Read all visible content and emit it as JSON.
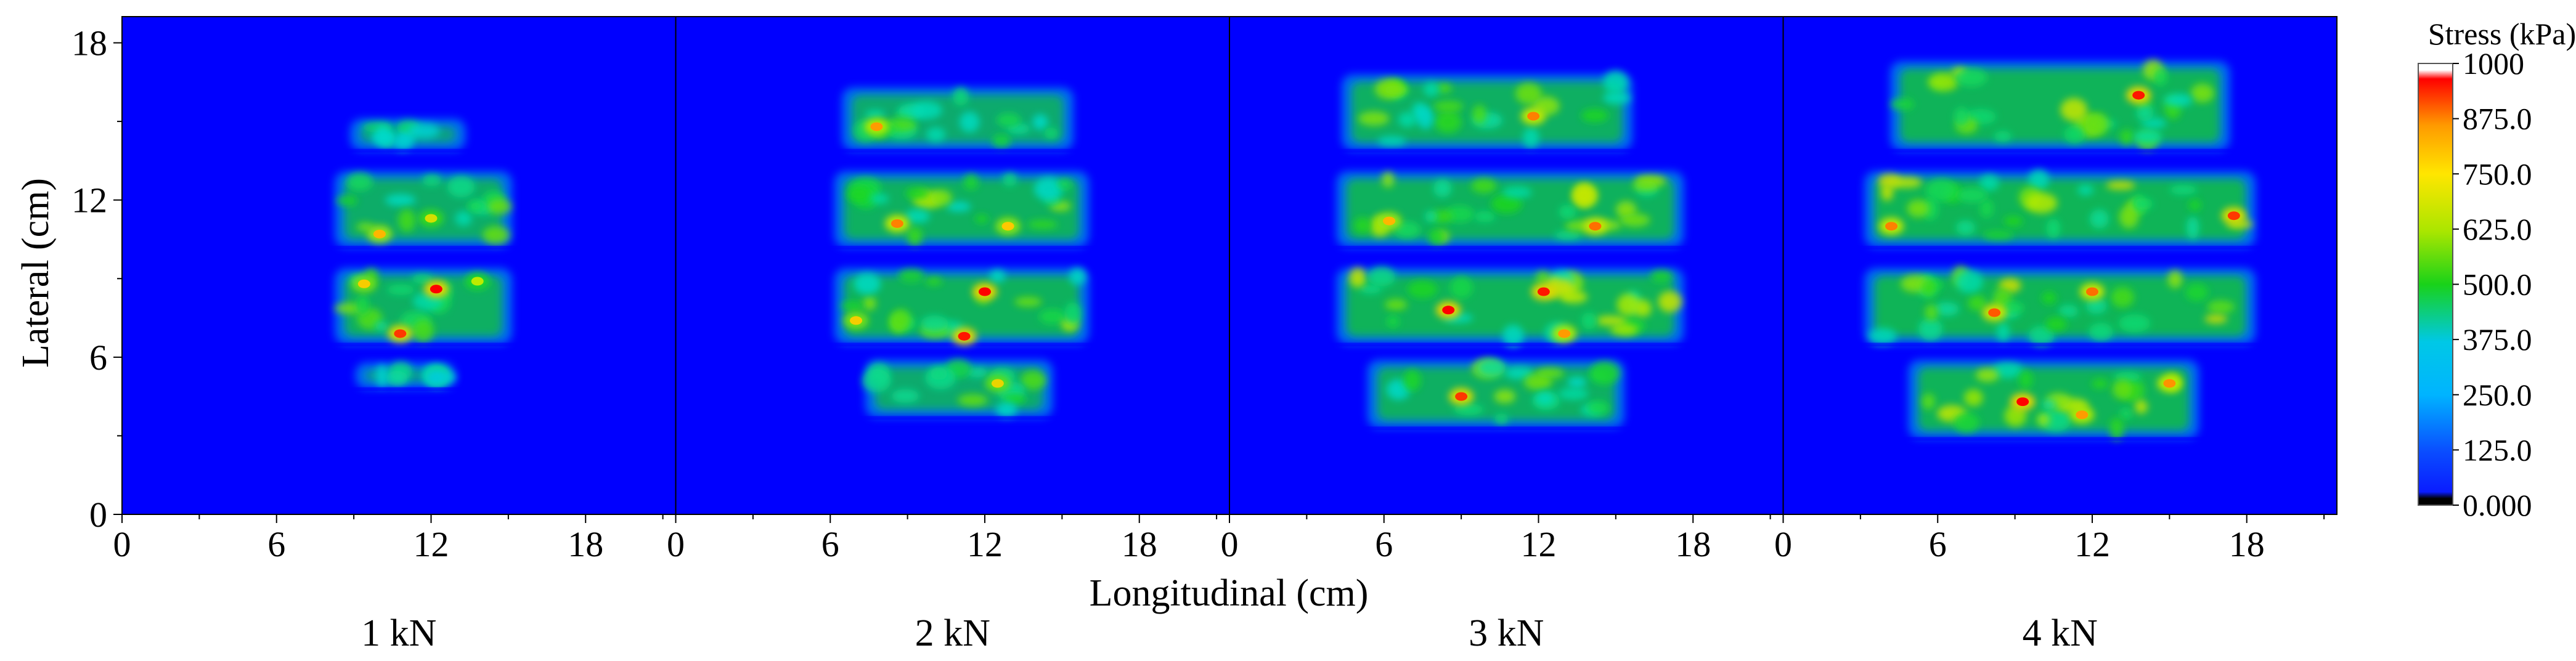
{
  "chart_data": {
    "type": "heatmap",
    "xlabel": "Longitudinal (cm)",
    "ylabel": "Lateral (cm)",
    "xlim": [
      0,
      21.5
    ],
    "ylim": [
      0,
      19
    ],
    "x_ticks": [
      "0",
      "6",
      "12",
      "18"
    ],
    "y_ticks": [
      "0",
      "6",
      "12",
      "18"
    ],
    "x_tick_values": [
      0,
      6,
      12,
      18
    ],
    "y_tick_values": [
      0,
      6,
      12,
      18
    ],
    "colorbar": {
      "title": "Stress (kPa)",
      "min": 0,
      "max": 1000,
      "tick_labels": [
        "1000",
        "875.0",
        "750.0",
        "625.0",
        "500.0",
        "375.0",
        "250.0",
        "125.0",
        "0.000"
      ],
      "tick_values": [
        1000,
        875,
        750,
        625,
        500,
        375,
        250,
        125,
        0
      ]
    },
    "colors": {
      "background": "#0000ff",
      "low": "#0a4cff",
      "mid_low": "#00c8e6",
      "mid": "#19d219",
      "mid_high": "#ffe600",
      "high": "#ff0000",
      "max": "#ffffff",
      "zero": "#000000"
    },
    "panels": [
      {
        "label": "1 kN",
        "bands": [
          {
            "x0": 9.0,
            "x1": 13.2,
            "y0": 14.0,
            "y1": 15.0,
            "intensity": 0.3
          },
          {
            "x0": 8.4,
            "x1": 15.0,
            "y0": 10.3,
            "y1": 13.0,
            "intensity": 0.55
          },
          {
            "x0": 8.4,
            "x1": 15.0,
            "y0": 6.6,
            "y1": 9.3,
            "intensity": 0.6
          },
          {
            "x0": 9.2,
            "x1": 12.8,
            "y0": 4.9,
            "y1": 5.7,
            "intensity": 0.25
          }
        ],
        "hotspots": [
          {
            "x": 12.2,
            "y": 8.6,
            "v": 1000
          },
          {
            "x": 10.8,
            "y": 6.9,
            "v": 950
          },
          {
            "x": 10.0,
            "y": 10.7,
            "v": 820
          },
          {
            "x": 9.4,
            "y": 8.8,
            "v": 780
          },
          {
            "x": 12.0,
            "y": 11.3,
            "v": 700
          },
          {
            "x": 13.8,
            "y": 8.9,
            "v": 650
          }
        ]
      },
      {
        "label": "2 kN",
        "bands": [
          {
            "x0": 6.6,
            "x1": 15.3,
            "y0": 14.0,
            "y1": 16.2,
            "intensity": 0.5
          },
          {
            "x0": 6.3,
            "x1": 15.9,
            "y0": 10.3,
            "y1": 13.0,
            "intensity": 0.62
          },
          {
            "x0": 6.3,
            "x1": 15.9,
            "y0": 6.6,
            "y1": 9.3,
            "intensity": 0.65
          },
          {
            "x0": 7.5,
            "x1": 14.5,
            "y0": 3.8,
            "y1": 5.8,
            "intensity": 0.5
          }
        ],
        "hotspots": [
          {
            "x": 12.0,
            "y": 8.5,
            "v": 1000
          },
          {
            "x": 11.2,
            "y": 6.8,
            "v": 980
          },
          {
            "x": 8.6,
            "y": 11.1,
            "v": 880
          },
          {
            "x": 7.8,
            "y": 14.8,
            "v": 850
          },
          {
            "x": 12.9,
            "y": 11.0,
            "v": 800
          },
          {
            "x": 7.0,
            "y": 7.4,
            "v": 780
          },
          {
            "x": 12.5,
            "y": 5.0,
            "v": 750
          }
        ]
      },
      {
        "label": "3 kN",
        "bands": [
          {
            "x0": 4.5,
            "x1": 15.5,
            "y0": 14.0,
            "y1": 16.7,
            "intensity": 0.6
          },
          {
            "x0": 4.3,
            "x1": 17.5,
            "y0": 10.3,
            "y1": 13.0,
            "intensity": 0.65
          },
          {
            "x0": 4.3,
            "x1": 17.5,
            "y0": 6.6,
            "y1": 9.3,
            "intensity": 0.68
          },
          {
            "x0": 5.5,
            "x1": 15.2,
            "y0": 3.4,
            "y1": 5.8,
            "intensity": 0.6
          }
        ],
        "hotspots": [
          {
            "x": 8.5,
            "y": 7.8,
            "v": 1000
          },
          {
            "x": 12.2,
            "y": 8.5,
            "v": 980
          },
          {
            "x": 9.0,
            "y": 4.5,
            "v": 950
          },
          {
            "x": 14.2,
            "y": 11.0,
            "v": 900
          },
          {
            "x": 11.8,
            "y": 15.2,
            "v": 880
          },
          {
            "x": 13.0,
            "y": 6.9,
            "v": 850
          },
          {
            "x": 6.2,
            "y": 11.2,
            "v": 820
          }
        ]
      },
      {
        "label": "4 kN",
        "bands": [
          {
            "x0": 4.3,
            "x1": 17.2,
            "y0": 14.0,
            "y1": 17.2,
            "intensity": 0.68
          },
          {
            "x0": 3.3,
            "x1": 18.2,
            "y0": 10.3,
            "y1": 13.0,
            "intensity": 0.7
          },
          {
            "x0": 3.3,
            "x1": 18.2,
            "y0": 6.6,
            "y1": 9.3,
            "intensity": 0.7
          },
          {
            "x0": 5.0,
            "x1": 16.0,
            "y0": 3.0,
            "y1": 5.8,
            "intensity": 0.68
          }
        ],
        "hotspots": [
          {
            "x": 9.3,
            "y": 4.3,
            "v": 1000
          },
          {
            "x": 13.8,
            "y": 16.0,
            "v": 980
          },
          {
            "x": 17.5,
            "y": 11.4,
            "v": 950
          },
          {
            "x": 8.2,
            "y": 7.7,
            "v": 920
          },
          {
            "x": 12.0,
            "y": 8.5,
            "v": 900
          },
          {
            "x": 4.2,
            "y": 11.0,
            "v": 880
          },
          {
            "x": 15.0,
            "y": 5.0,
            "v": 860
          },
          {
            "x": 11.6,
            "y": 3.8,
            "v": 850
          }
        ]
      }
    ]
  }
}
